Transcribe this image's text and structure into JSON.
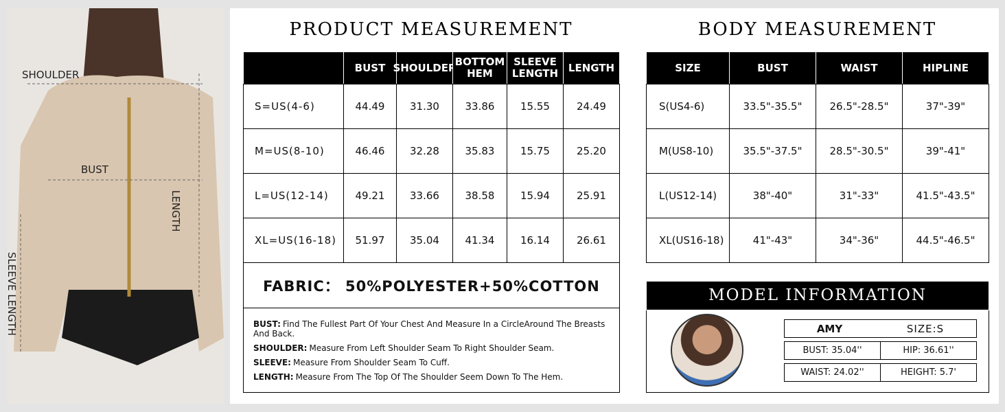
{
  "photo_labels": {
    "shoulder": "SHOULDER",
    "bust": "BUST",
    "length": "LENGTH",
    "sleeve": "SLEEVE LENGTH"
  },
  "product": {
    "title": "PRODUCT MEASUREMENT",
    "columns": [
      "BUST",
      "SHOULDER",
      "BOTTOM HEM",
      "SLEEVE LENGTH",
      "LENGTH"
    ],
    "rows": [
      [
        "S=US(4-6)",
        "44.49",
        "31.30",
        "33.86",
        "15.55",
        "24.49"
      ],
      [
        "M=US(8-10)",
        "46.46",
        "32.28",
        "35.83",
        "15.75",
        "25.20"
      ],
      [
        "L=US(12-14)",
        "49.21",
        "33.66",
        "38.58",
        "15.94",
        "25.91"
      ],
      [
        "XL=US(16-18)",
        "51.97",
        "35.04",
        "41.34",
        "16.14",
        "26.61"
      ]
    ],
    "fabric": "FABRIC：  50%POLYESTER+50%COTTON",
    "notes": [
      {
        "term": "BUST:",
        "text": "Find The Fullest Part Of Your Chest And Measure In a CircleAround The Breasts And Back."
      },
      {
        "term": "SHOULDER:",
        "text": "Measure From Left Shoulder Seam To Right Shoulder Seam."
      },
      {
        "term": "SLEEVE:",
        "text": "Measure From Shoulder Seam To Cuff."
      },
      {
        "term": "LENGTH:",
        "text": "Measure From The Top Of The Shoulder Seem Down To The Hem."
      }
    ]
  },
  "body": {
    "title": "BODY MEASUREMENT",
    "columns": [
      "SIZE",
      "BUST",
      "WAIST",
      "HIPLINE"
    ],
    "rows": [
      [
        "S(US4-6)",
        "33.5\"-35.5\"",
        "26.5\"-28.5\"",
        "37\"-39\""
      ],
      [
        "M(US8-10)",
        "35.5\"-37.5\"",
        "28.5\"-30.5\"",
        "39\"-41\""
      ],
      [
        "L(US12-14)",
        "38\"-40\"",
        "31\"-33\"",
        "41.5\"-43.5\""
      ],
      [
        "XL(US16-18)",
        "41\"-43\"",
        "34\"-36\"",
        "44.5\"-46.5\""
      ]
    ]
  },
  "model": {
    "title": "MODEL INFORMATION",
    "name": "AMY",
    "size": "SIZE:S",
    "stats": [
      "BUST: 35.04''",
      "HIP: 36.61''",
      "WAIST: 24.02''",
      "HEIGHT: 5.7'"
    ]
  }
}
